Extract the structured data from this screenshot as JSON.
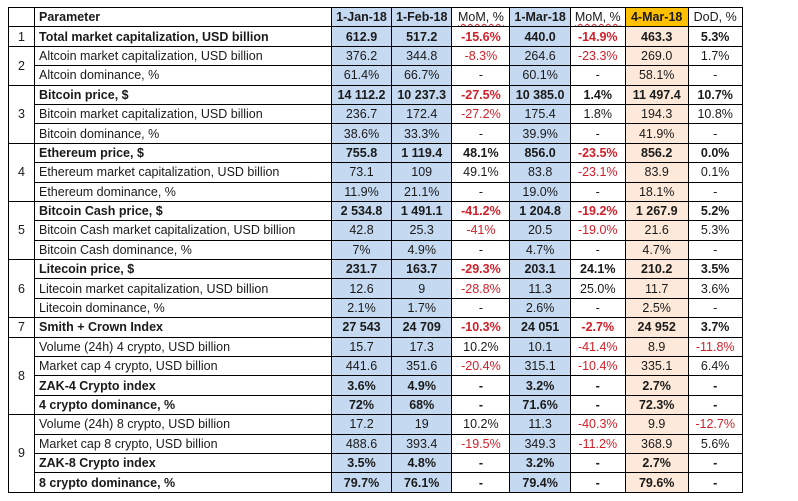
{
  "header": {
    "num": "",
    "parameter": "Parameter",
    "jan": "1-Jan-18",
    "feb": "1-Feb-18",
    "mom1": "MoM, %",
    "mar1": "1-Mar-18",
    "mom2": "MoM, %",
    "mar4": "4-Mar-18",
    "dod": "DoD, %"
  },
  "colors": {
    "date_cell_blue": "#c5d9f1",
    "current_date_header": "#ffc000",
    "current_date_cells": "#fde9d9",
    "negative_text": "#d0202a"
  },
  "groups": [
    {
      "num": "1",
      "rows": [
        {
          "parameter": "Total market capitalization, USD billion",
          "bold": true,
          "jan": "612.9",
          "feb": "517.2",
          "mom1": "-15.6%",
          "mar1": "440.0",
          "mom2": "-14.9%",
          "mar4": "463.3",
          "dod": "5.3%"
        }
      ]
    },
    {
      "num": "2",
      "rows": [
        {
          "parameter": "Altcoin market capitalization, USD billion",
          "bold": false,
          "jan": "376.2",
          "feb": "344.8",
          "mom1": "-8.3%",
          "mar1": "264.6",
          "mom2": "-23.3%",
          "mar4": "269.0",
          "dod": "1.7%"
        },
        {
          "parameter": "Altcoin dominance, %",
          "bold": false,
          "jan": "61.4%",
          "feb": "66.7%",
          "mom1": "-",
          "mar1": "60.1%",
          "mom2": "-",
          "mar4": "58.1%",
          "dod": "-"
        }
      ]
    },
    {
      "num": "3",
      "rows": [
        {
          "parameter": "Bitcoin price, $",
          "bold": true,
          "jan": "14 112.2",
          "feb": "10 237.3",
          "mom1": "-27.5%",
          "mar1": "10 385.0",
          "mom2": "1.4%",
          "mar4": "11 497.4",
          "dod": "10.7%"
        },
        {
          "parameter": "Bitcoin market capitalization, USD billion",
          "bold": false,
          "jan": "236.7",
          "feb": "172.4",
          "mom1": "-27.2%",
          "mar1": "175.4",
          "mom2": "1.8%",
          "mar4": "194.3",
          "dod": "10.8%"
        },
        {
          "parameter": "Bitcoin dominance, %",
          "bold": false,
          "jan": "38.6%",
          "feb": "33.3%",
          "mom1": "-",
          "mar1": "39.9%",
          "mom2": "-",
          "mar4": "41.9%",
          "dod": "-"
        }
      ]
    },
    {
      "num": "4",
      "rows": [
        {
          "parameter": "Ethereum price, $",
          "bold": true,
          "jan": "755.8",
          "feb": "1 119.4",
          "mom1": "48.1%",
          "mar1": "856.0",
          "mom2": "-23.5%",
          "mar4": "856.2",
          "dod": "0.0%"
        },
        {
          "parameter": "Ethereum market capitalization, USD billion",
          "bold": false,
          "jan": "73.1",
          "feb": "109",
          "mom1": "49.1%",
          "mar1": "83.8",
          "mom2": "-23.1%",
          "mar4": "83.9",
          "dod": "0.1%"
        },
        {
          "parameter": "Ethereum dominance, %",
          "bold": false,
          "jan": "11.9%",
          "feb": "21.1%",
          "mom1": "-",
          "mar1": "19.0%",
          "mom2": "-",
          "mar4": "18.1%",
          "dod": "-"
        }
      ]
    },
    {
      "num": "5",
      "rows": [
        {
          "parameter": "Bitcoin Cash price, $",
          "bold": true,
          "jan": "2 534.8",
          "feb": "1 491.1",
          "mom1": "-41.2%",
          "mar1": "1 204.8",
          "mom2": "-19.2%",
          "mar4": "1 267.9",
          "dod": "5.2%"
        },
        {
          "parameter": "Bitcoin Cash market capitalization, USD billion",
          "bold": false,
          "jan": "42.8",
          "feb": "25.3",
          "mom1": "-41%",
          "mar1": "20.5",
          "mom2": "-19.0%",
          "mar4": "21.6",
          "dod": "5.3%"
        },
        {
          "parameter": "Bitcoin Cash dominance, %",
          "bold": false,
          "jan": "7%",
          "feb": "4.9%",
          "mom1": "-",
          "mar1": "4.7%",
          "mom2": "-",
          "mar4": "4.7%",
          "dod": "-"
        }
      ]
    },
    {
      "num": "6",
      "rows": [
        {
          "parameter": "Litecoin price, $",
          "bold": true,
          "jan": "231.7",
          "feb": "163.7",
          "mom1": "-29.3%",
          "mar1": "203.1",
          "mom2": "24.1%",
          "mar4": "210.2",
          "dod": "3.5%"
        },
        {
          "parameter": "Litecoin market capitalization, USD billion",
          "bold": false,
          "jan": "12.6",
          "feb": "9",
          "mom1": "-28.8%",
          "mar1": "11.3",
          "mom2": "25.0%",
          "mar4": "11.7",
          "dod": "3.6%"
        },
        {
          "parameter": "Litecoin dominance, %",
          "bold": false,
          "jan": "2.1%",
          "feb": "1.7%",
          "mom1": "-",
          "mar1": "2.6%",
          "mom2": "-",
          "mar4": "2.5%",
          "dod": "-"
        }
      ]
    },
    {
      "num": "7",
      "rows": [
        {
          "parameter": "Smith + Crown Index",
          "bold": true,
          "jan": "27 543",
          "feb": "24 709",
          "mom1": "-10.3%",
          "mar1": "24 051",
          "mom2": "-2.7%",
          "mar4": "24 952",
          "dod": "3.7%"
        }
      ]
    },
    {
      "num": "8",
      "rows": [
        {
          "parameter": "Volume (24h) 4 crypto, USD billion",
          "bold": false,
          "jan": "15.7",
          "feb": "17.3",
          "mom1": "10.2%",
          "mar1": "10.1",
          "mom2": "-41.4%",
          "mar4": "8.9",
          "dod": "-11.8%"
        },
        {
          "parameter": "Market cap 4 crypto, USD billion",
          "bold": false,
          "jan": "441.6",
          "feb": "351.6",
          "mom1": "-20.4%",
          "mar1": "315.1",
          "mom2": "-10.4%",
          "mar4": "335.1",
          "dod": "6.4%"
        },
        {
          "parameter": "ZAK-4 Crypto index",
          "bold": true,
          "jan": "3.6%",
          "feb": "4.9%",
          "mom1": "-",
          "mar1": "3.2%",
          "mom2": "-",
          "mar4": "2.7%",
          "dod": "-"
        },
        {
          "parameter": "4 crypto dominance, %",
          "bold": true,
          "jan": "72%",
          "feb": "68%",
          "mom1": "-",
          "mar1": "71.6%",
          "mom2": "-",
          "mar4": "72.3%",
          "dod": "-"
        }
      ]
    },
    {
      "num": "9",
      "rows": [
        {
          "parameter": "Volume (24h) 8 crypto, USD billion",
          "bold": false,
          "jan": "17.2",
          "feb": "19",
          "mom1": "10.2%",
          "mar1": "11.3",
          "mom2": "-40.3%",
          "mar4": "9.9",
          "dod": "-12.7%"
        },
        {
          "parameter": "Market cap 8 crypto, USD billion",
          "bold": false,
          "jan": "488.6",
          "feb": "393.4",
          "mom1": "-19.5%",
          "mar1": "349.3",
          "mom2": "-11.2%",
          "mar4": "368.9",
          "dod": "5.6%"
        },
        {
          "parameter": "ZAK-8 Crypto index",
          "bold": true,
          "jan": "3.5%",
          "feb": "4.8%",
          "mom1": "-",
          "mar1": "3.2%",
          "mom2": "-",
          "mar4": "2.7%",
          "dod": "-"
        },
        {
          "parameter": "8 crypto dominance, %",
          "bold": true,
          "jan": "79.7%",
          "feb": "76.1%",
          "mom1": "-",
          "mar1": "79.4%",
          "mom2": "-",
          "mar4": "79.6%",
          "dod": "-"
        }
      ]
    }
  ]
}
